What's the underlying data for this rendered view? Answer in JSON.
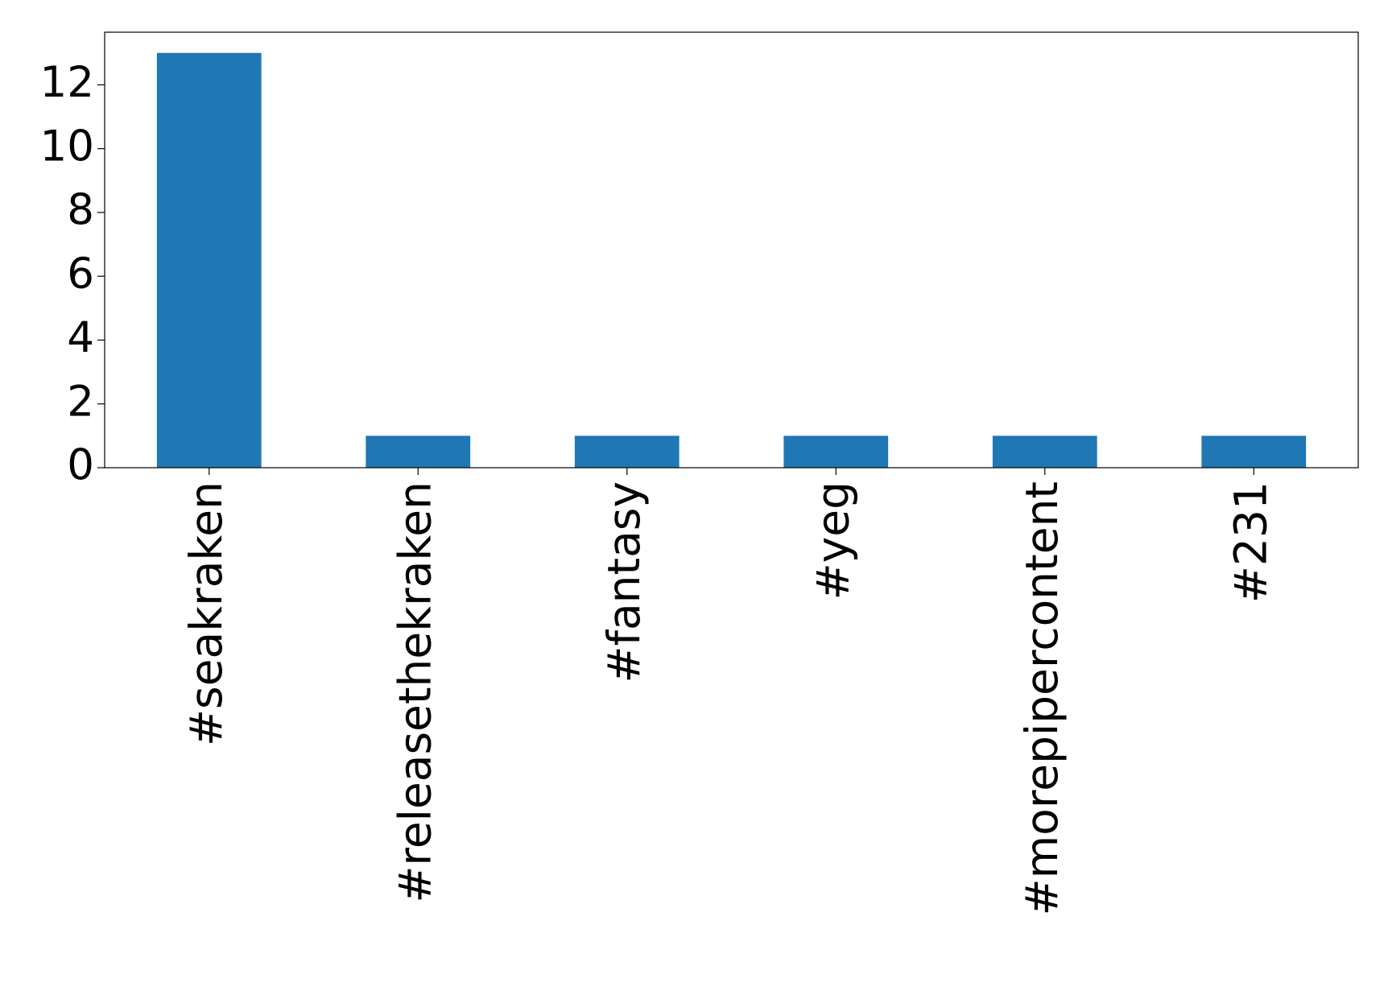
{
  "chart_data": {
    "type": "bar",
    "categories": [
      "#seakraken",
      "#releasethekraken",
      "#fantasy",
      "#yeg",
      "#morepipercontent",
      "#231"
    ],
    "values": [
      13,
      1,
      1,
      1,
      1,
      1
    ],
    "color": "#1f77b4",
    "ylim": [
      0,
      13.65
    ],
    "yticks": [
      0,
      2,
      4,
      6,
      8,
      10,
      12
    ],
    "grid": false
  }
}
